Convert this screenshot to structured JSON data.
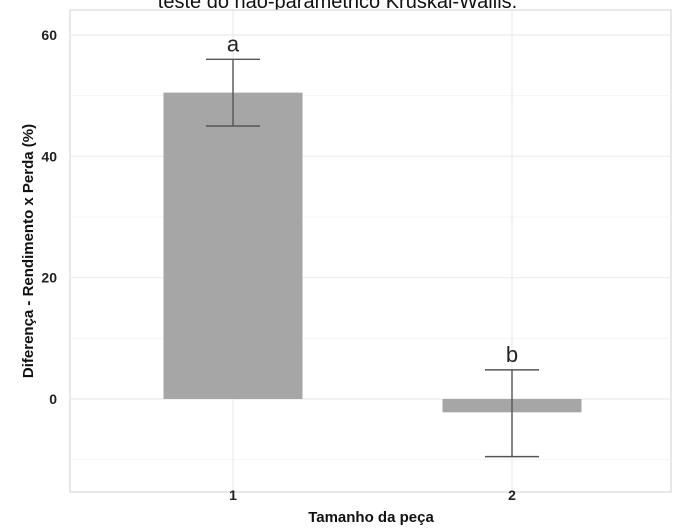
{
  "caption": "teste do não-paramétrico Kruskal-Wallis.",
  "chart_data": {
    "type": "bar",
    "title": "",
    "xlabel": "Tamanho da peça",
    "ylabel": "Diferença - Rendimento x Perda (%)",
    "categories": [
      "1",
      "2"
    ],
    "values": [
      50.5,
      -2.2
    ],
    "error_upper": [
      56.0,
      4.8
    ],
    "error_lower": [
      45.0,
      -9.5
    ],
    "significance_letters": [
      "a",
      "b"
    ],
    "y_ticks": [
      0,
      20,
      40,
      60
    ],
    "ylim": [
      -12,
      62
    ],
    "grid": true,
    "legend": "none",
    "bar_color": "#a6a6a6"
  }
}
